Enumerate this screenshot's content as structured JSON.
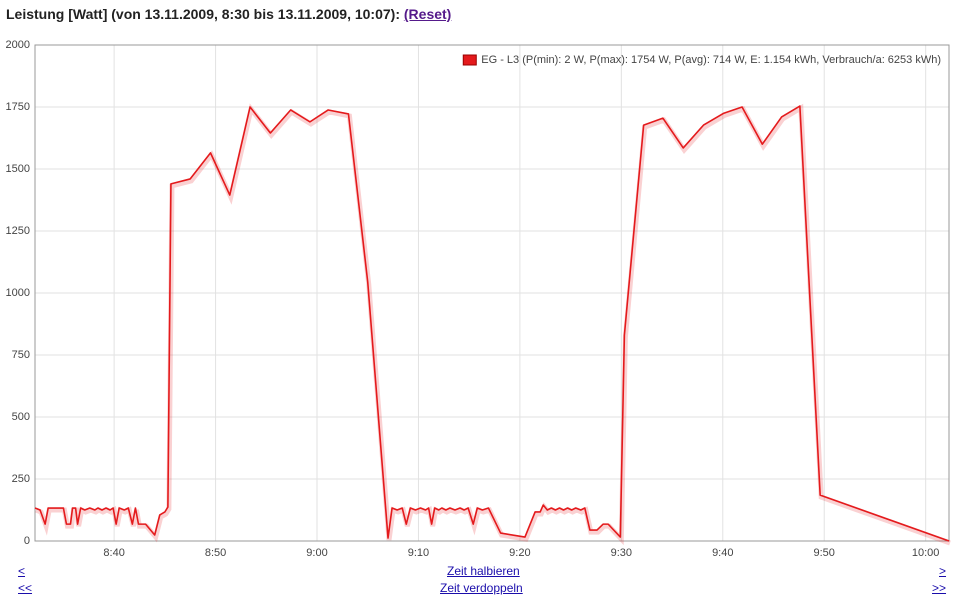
{
  "chart_data": {
    "type": "line",
    "title": "Leistung [Watt] (von 13.11.2009, 8:30 bis 13.11.2009, 10:07):",
    "x": [
      512.2,
      512.7,
      513.2,
      513.5,
      514.7,
      515.0,
      515.3,
      515.7,
      515.9,
      516.2,
      516.4,
      516.7,
      517.1,
      517.6,
      518.1,
      518.4,
      518.8,
      519.2,
      519.6,
      519.9,
      520.2,
      520.5,
      521.0,
      521.4,
      521.8,
      522.1,
      522.4,
      523.1,
      524.0,
      524.5,
      525.0,
      525.3,
      525.6,
      527.5,
      529.5,
      531.4,
      533.4,
      535.4,
      537.4,
      539.3,
      541.1,
      543.1,
      545.0,
      547.0,
      547.4,
      547.9,
      548.4,
      548.8,
      549.2,
      549.7,
      550.2,
      550.7,
      551.0,
      551.3,
      551.6,
      552.0,
      552.3,
      552.7,
      553.1,
      553.6,
      554.1,
      554.5,
      554.9,
      555.4,
      555.8,
      556.3,
      556.9,
      558.1,
      560.5,
      561.5,
      562.0,
      562.3,
      562.7,
      563.1,
      563.5,
      563.9,
      564.3,
      564.7,
      565.1,
      565.5,
      566.0,
      566.4,
      566.9,
      567.6,
      568.2,
      568.7,
      569.9,
      570.3,
      572.2,
      574.1,
      576.1,
      578.1,
      580.1,
      581.9,
      583.9,
      585.8,
      587.6,
      589.6,
      602.3
    ],
    "series": [
      {
        "name": "EG - L3 (P(min): 2 W, P(max): 1754 W, P(avg): 714 W, E: 1.154 kWh, Verbrauch/a: 6253 kWh)",
        "color": "#e41a1c",
        "values": [
          133,
          125,
          68,
          133,
          133,
          133,
          68,
          68,
          133,
          133,
          68,
          133,
          125,
          133,
          125,
          133,
          125,
          133,
          125,
          133,
          68,
          133,
          125,
          133,
          68,
          133,
          68,
          68,
          24,
          105,
          117,
          137,
          1440,
          1460,
          1565,
          1395,
          1750,
          1645,
          1738,
          1690,
          1738,
          1722,
          1044,
          12,
          133,
          125,
          133,
          68,
          133,
          125,
          133,
          125,
          133,
          68,
          133,
          125,
          133,
          125,
          133,
          125,
          133,
          125,
          133,
          68,
          133,
          125,
          133,
          32,
          16,
          117,
          117,
          145,
          125,
          133,
          125,
          133,
          125,
          133,
          125,
          133,
          125,
          133,
          44,
          44,
          68,
          68,
          16,
          830,
          1677,
          1705,
          1585,
          1677,
          1725,
          1750,
          1600,
          1710,
          1754,
          185,
          0
        ]
      }
    ],
    "xlim": [
      512.2,
      602.3
    ],
    "xticks": [
      {
        "value": 520,
        "label": "8:40"
      },
      {
        "value": 530,
        "label": "8:50"
      },
      {
        "value": 540,
        "label": "9:00"
      },
      {
        "value": 550,
        "label": "9:10"
      },
      {
        "value": 560,
        "label": "9:20"
      },
      {
        "value": 570,
        "label": "9:30"
      },
      {
        "value": 580,
        "label": "9:40"
      },
      {
        "value": 590,
        "label": "9:50"
      },
      {
        "value": 600,
        "label": "10:00"
      }
    ],
    "ylim": [
      0,
      2000
    ],
    "yticks": [
      0,
      250,
      500,
      750,
      1000,
      1250,
      1500,
      1750,
      2000
    ],
    "grid": true,
    "legend": "top-right"
  },
  "reset_link": "(Reset)",
  "navigation": {
    "back": "<",
    "forward": ">",
    "halve": "Zeit halbieren",
    "back_far": "<<",
    "forward_far": ">>",
    "double": "Zeit verdoppeln"
  }
}
